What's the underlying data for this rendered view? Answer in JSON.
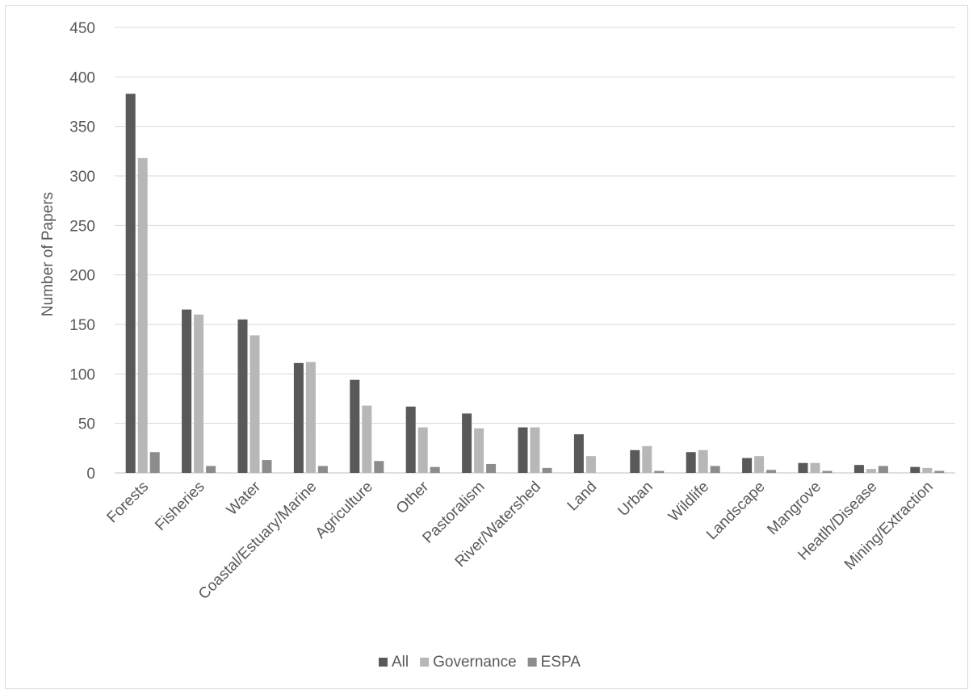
{
  "chart_data": {
    "type": "bar",
    "title": "",
    "xlabel": "",
    "ylabel": "Number of Papers",
    "ylim": [
      0,
      450
    ],
    "yticks": [
      0,
      50,
      100,
      150,
      200,
      250,
      300,
      350,
      400,
      450
    ],
    "grid": true,
    "legend_position": "bottom",
    "categories": [
      "Forests",
      "Fisheries",
      "Water",
      "Coastal/Estuary/Marine",
      "Agriculture",
      "Other",
      "Pastoralism",
      "River/Watershed",
      "Land",
      "Urban",
      "Wildlife",
      "Landscape",
      "Mangrove",
      "Heatlh/Disease",
      "Mining/Extraction"
    ],
    "series": [
      {
        "name": "All",
        "color": "#595959",
        "values": [
          383,
          165,
          155,
          111,
          94,
          67,
          60,
          46,
          39,
          23,
          21,
          15,
          10,
          8,
          6
        ]
      },
      {
        "name": "Governance",
        "color": "#b7b7b7",
        "values": [
          318,
          160,
          139,
          112,
          68,
          46,
          45,
          46,
          17,
          27,
          23,
          17,
          10,
          4,
          5
        ]
      },
      {
        "name": "ESPA",
        "color": "#8c8c8c",
        "values": [
          21,
          7,
          13,
          7,
          12,
          6,
          9,
          5,
          0,
          2,
          7,
          3,
          2,
          7,
          2
        ]
      }
    ]
  }
}
